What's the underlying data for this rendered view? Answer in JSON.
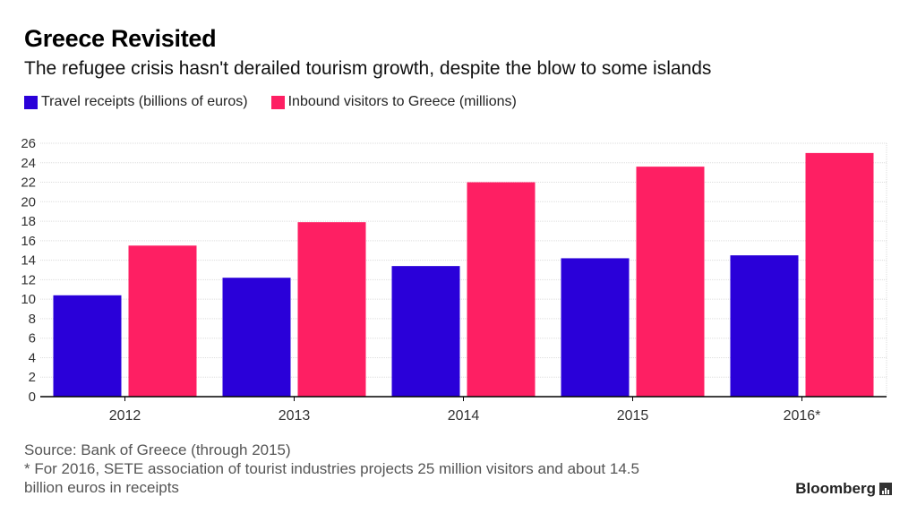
{
  "header": {
    "title": "Greece Revisited",
    "subtitle": "The refugee crisis hasn't derailed tourism growth, despite the blow to some islands"
  },
  "footer": {
    "source": "Source: Bank of Greece (through 2015)",
    "note_line1": "* For 2016, SETE association of tourist industries projects 25 million visitors and about 14.5",
    "note_line2": "billion euros in receipts",
    "brand": "Bloomberg"
  },
  "colors": {
    "receipts": "#2a00d9",
    "visitors": "#fe1f63",
    "grid": "#dddddd",
    "axis": "#000000"
  },
  "chart_data": {
    "type": "bar",
    "title": "Greece Revisited",
    "subtitle": "The refugee crisis hasn't derailed tourism growth, despite the blow to some islands",
    "categories": [
      "2012",
      "2013",
      "2014",
      "2015",
      "2016*"
    ],
    "series": [
      {
        "name": "Travel receipts (billions of euros)",
        "values": [
          10.4,
          12.2,
          13.4,
          14.2,
          14.5
        ]
      },
      {
        "name": "Inbound visitors to Greece (millions)",
        "values": [
          15.5,
          17.9,
          22.0,
          23.6,
          25.0
        ]
      }
    ],
    "ylim": [
      0,
      26
    ],
    "yticks": [
      0,
      2,
      4,
      6,
      8,
      10,
      12,
      14,
      16,
      18,
      20,
      22,
      24,
      26
    ],
    "xlabel": "",
    "ylabel": "",
    "grid": true,
    "legend": "top-left"
  }
}
